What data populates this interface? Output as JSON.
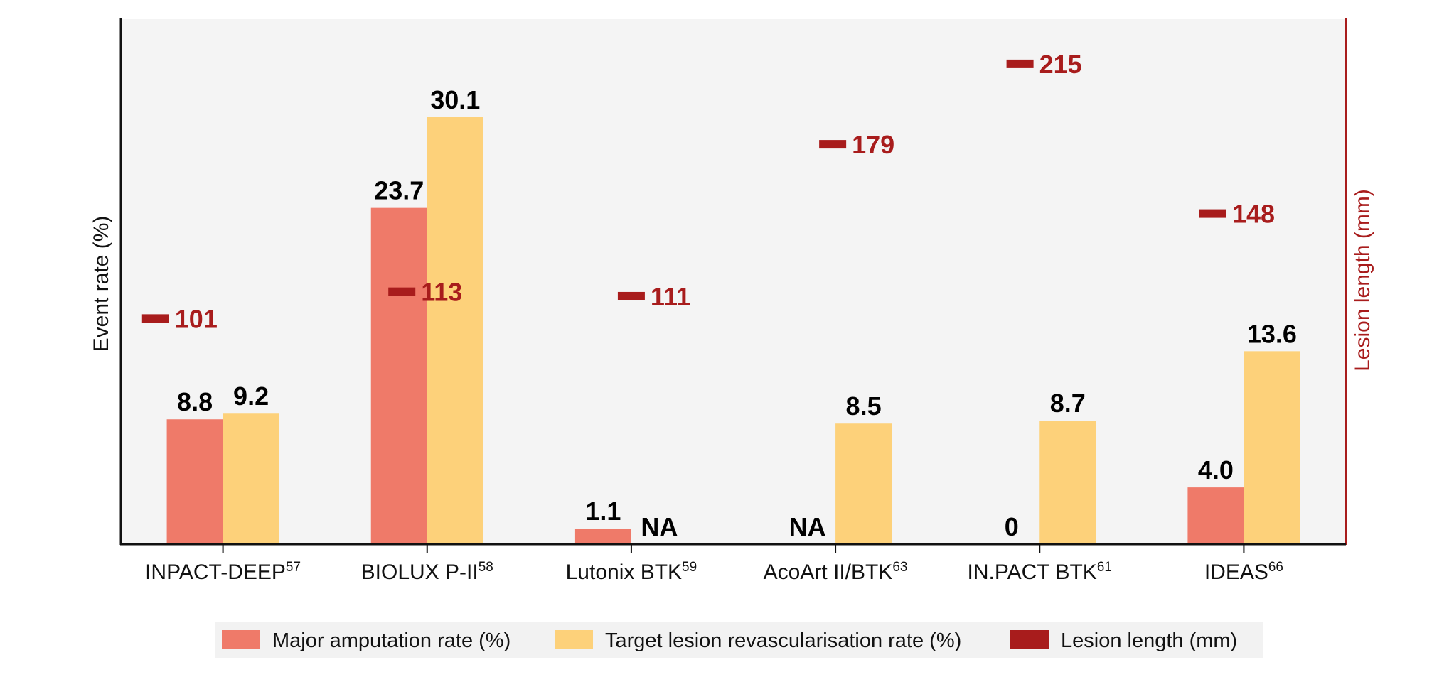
{
  "chart_data": {
    "type": "bar",
    "categories": [
      "INPACT-DEEP",
      "BIOLUX P-II",
      "Lutonix BTK",
      "AcoArt II/BTK",
      "IN.PACT BTK",
      "IDEAS"
    ],
    "category_superscripts": [
      "57",
      "58",
      "59",
      "63",
      "61",
      "66"
    ],
    "ylabel": "Event rate (%)",
    "y2label": "Lesion length (mm)",
    "ylim": [
      0,
      37
    ],
    "y2lim": [
      0,
      235
    ],
    "series": [
      {
        "name": "Major amputation rate (%)",
        "values": [
          8.8,
          23.7,
          1.1,
          null,
          0,
          4.0
        ],
        "labels": [
          "8.8",
          "23.7",
          "1.1",
          "NA",
          "0",
          "4.0"
        ],
        "color": "#ef7a69",
        "axis": "left"
      },
      {
        "name": "Target lesion revascularisation rate (%)",
        "values": [
          9.2,
          30.1,
          null,
          8.5,
          8.7,
          13.6
        ],
        "labels": [
          "9.2",
          "30.1",
          "NA",
          "8.5",
          "8.7",
          "13.6"
        ],
        "color": "#fdd17a",
        "axis": "left"
      },
      {
        "name": "Lesion length (mm)",
        "values": [
          101,
          113,
          111,
          179,
          215,
          148
        ],
        "labels": [
          "101",
          "113",
          "111",
          "179",
          "215",
          "148"
        ],
        "color": "#a81c1c",
        "axis": "right",
        "marker": "dash"
      }
    ],
    "colors": {
      "plot_background": "#f4f4f4",
      "axis": "#111111",
      "right_axis": "#a81c1c",
      "legend_background": "#f2f2f2"
    },
    "legend_position": "bottom",
    "grid": false
  }
}
